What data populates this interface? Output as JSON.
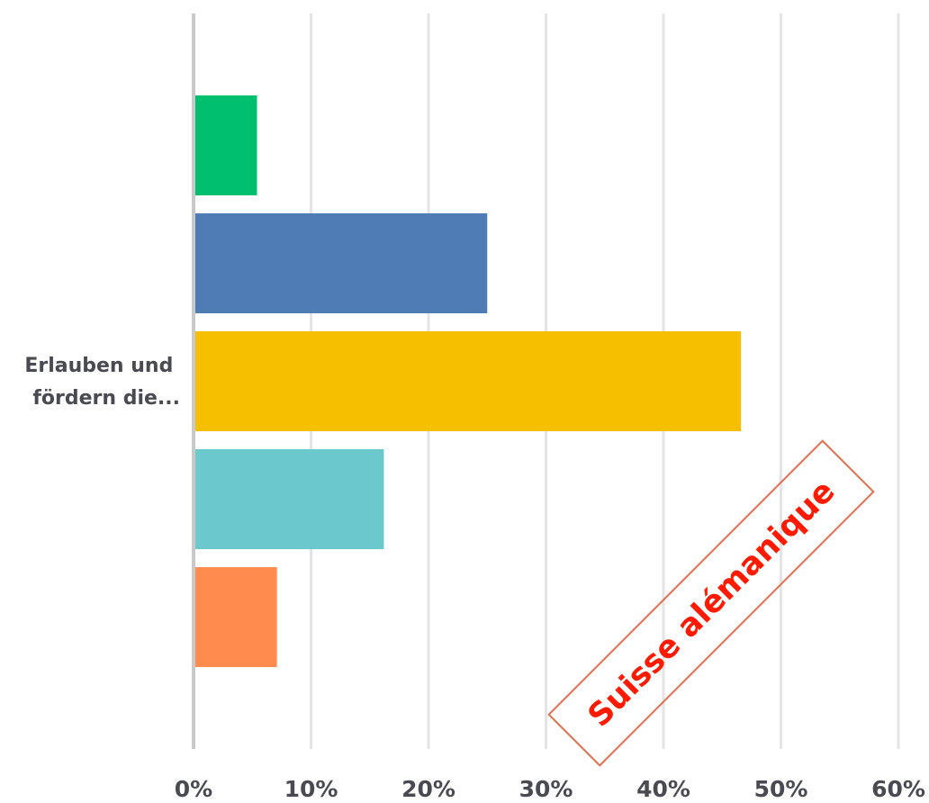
{
  "chart_data": {
    "type": "bar",
    "orientation": "horizontal",
    "categories": [
      "Erlauben und fördern die..."
    ],
    "category_label_lines": [
      "Erlauben und",
      "fördern die..."
    ],
    "series": [
      {
        "color": "#00bf6f",
        "values": [
          5.4
        ]
      },
      {
        "color": "#507cb6",
        "values": [
          25.0
        ]
      },
      {
        "color": "#f6bf00",
        "values": [
          46.6
        ]
      },
      {
        "color": "#6bc8cd",
        "values": [
          16.2
        ]
      },
      {
        "color": "#ff8b4f",
        "values": [
          7.1
        ]
      }
    ],
    "x_ticks": [
      "0%",
      "10%",
      "20%",
      "30%",
      "40%",
      "50%",
      "60%"
    ],
    "xlim": [
      0,
      60
    ],
    "grid": true,
    "annotation": {
      "text": "Suisse alémanique",
      "color": "#ff1a00",
      "border_color": "#e0704e"
    }
  }
}
